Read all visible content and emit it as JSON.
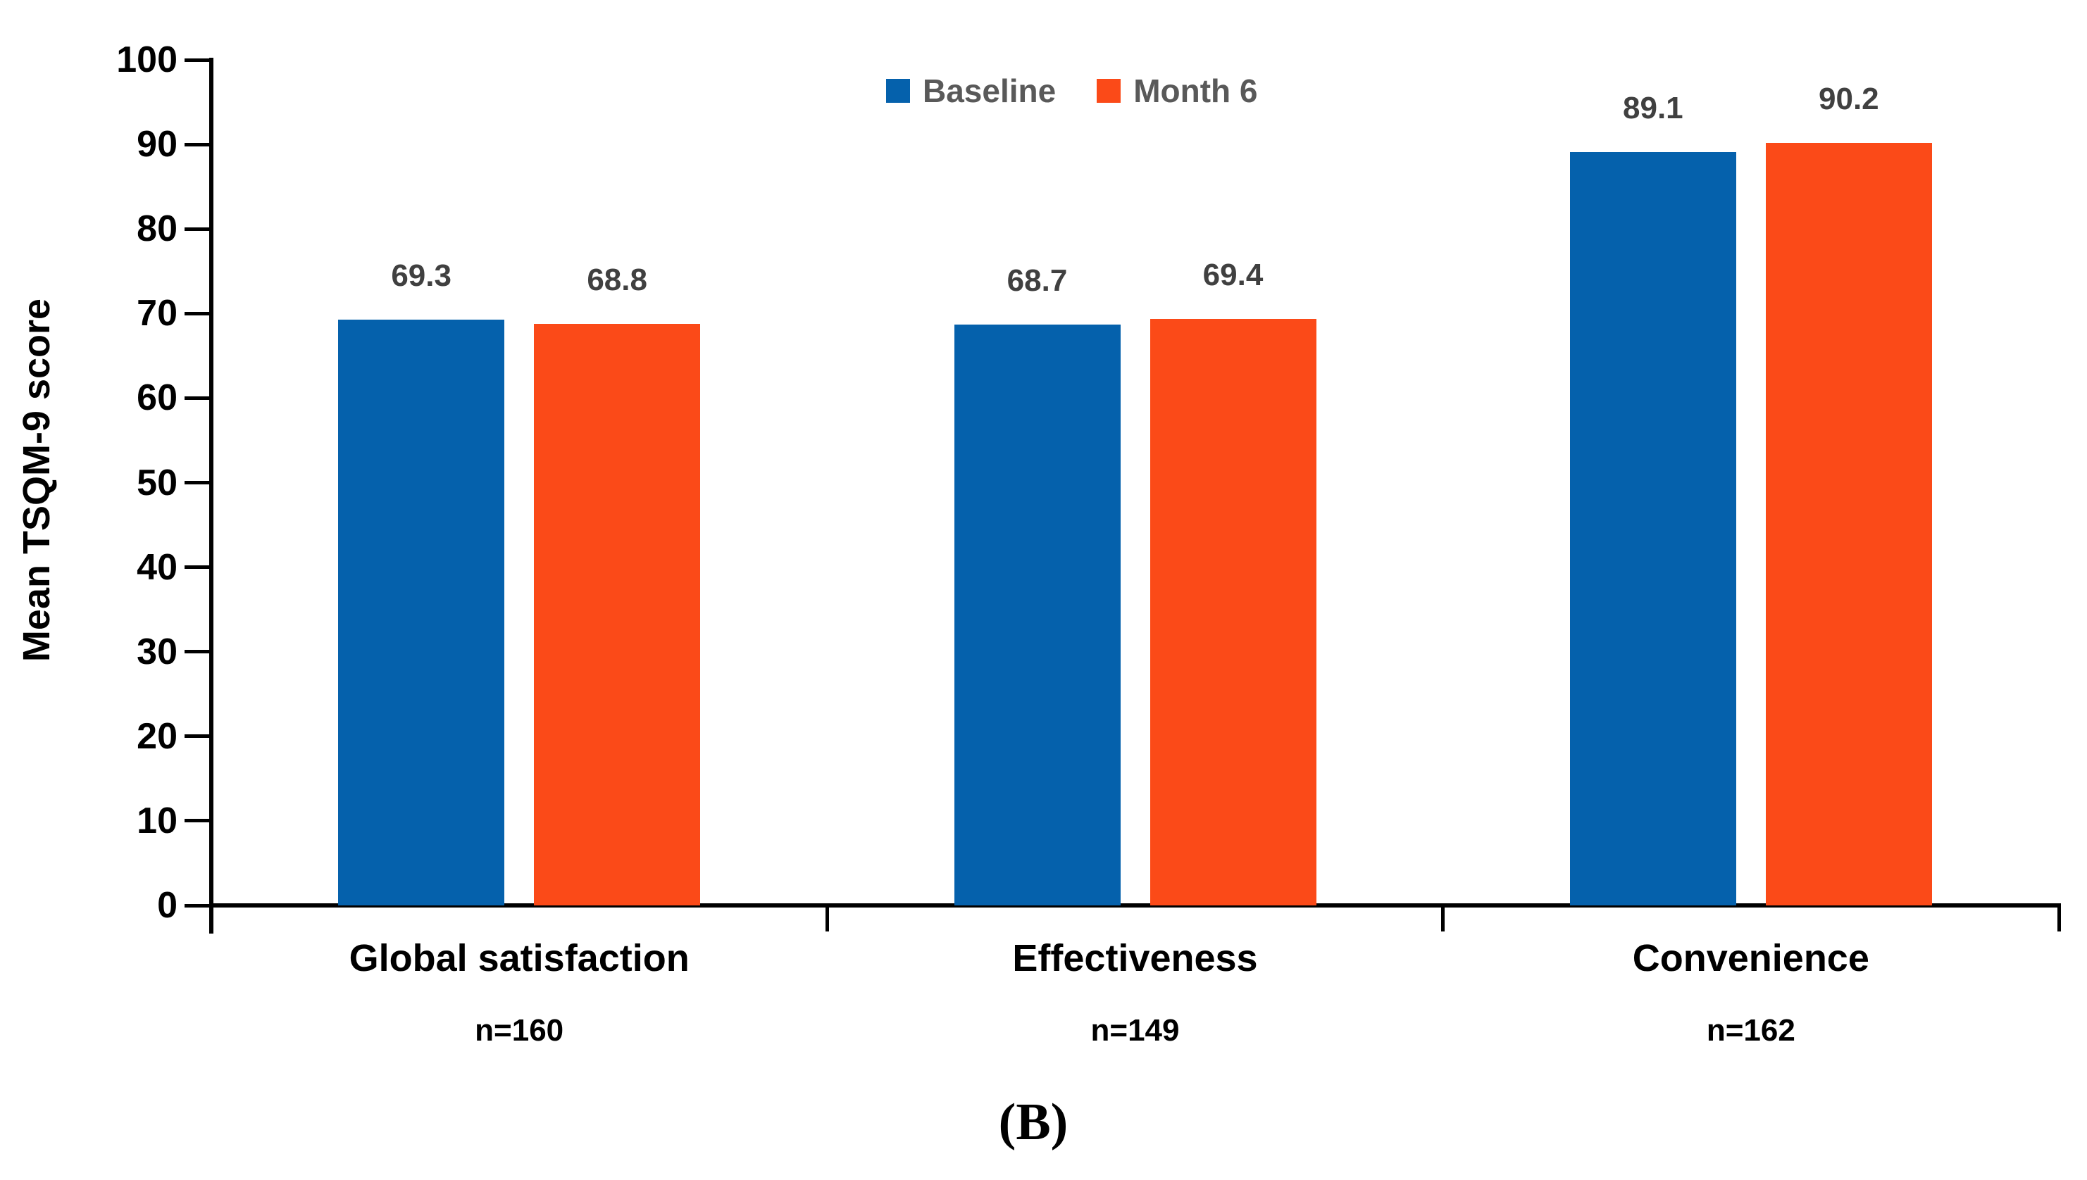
{
  "figure": {
    "caption": "(B)"
  },
  "chart_data": {
    "type": "bar",
    "title": "",
    "xlabel": "",
    "ylabel": "Mean TSQM-9 score",
    "ylim": [
      0,
      100
    ],
    "yticks": [
      0,
      10,
      20,
      30,
      40,
      50,
      60,
      70,
      80,
      90,
      100
    ],
    "grid": false,
    "value_labels_shown": true,
    "legend_position": "top-center",
    "categories": [
      "Global satisfaction",
      "Effectiveness",
      "Convenience"
    ],
    "category_counts": [
      "n=160",
      "n=149",
      "n=162"
    ],
    "series": [
      {
        "name": "Baseline",
        "color": "#0561AC",
        "values": [
          69.3,
          68.7,
          89.1
        ]
      },
      {
        "name": "Month 6",
        "color": "#FB4A18",
        "values": [
          68.8,
          69.4,
          90.2
        ]
      }
    ]
  },
  "colors": {
    "axis": "#000000",
    "tick_label": "#000000",
    "category_label": "#000000",
    "value_label": "#404040",
    "legend_text": "#595959",
    "background": "#ffffff"
  }
}
